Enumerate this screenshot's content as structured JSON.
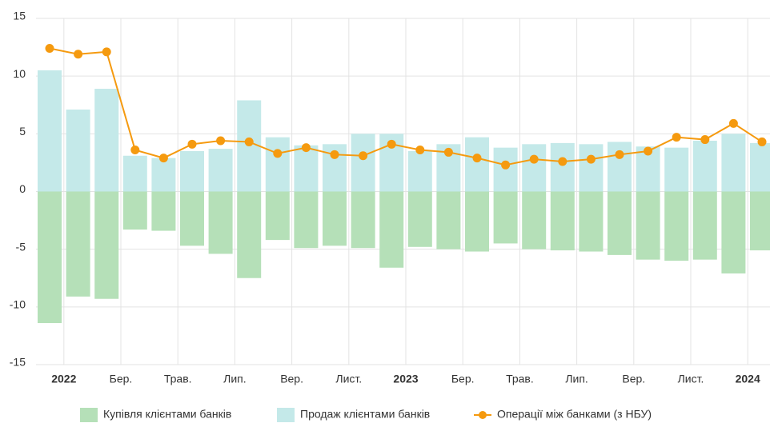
{
  "chart_data": {
    "type": "bar-line",
    "categories": [
      null,
      null,
      null,
      null,
      null,
      null,
      null,
      null,
      null,
      null,
      null,
      null,
      null,
      null,
      null,
      null,
      null,
      null,
      null,
      null,
      null,
      null,
      null,
      null,
      null,
      null
    ],
    "series": [
      {
        "name": "Купівля клієнтами банків",
        "type": "bar",
        "color": "#b5e0b8",
        "values": [
          -11.4,
          -9.1,
          -9.3,
          -3.3,
          -3.4,
          -4.7,
          -5.4,
          -7.5,
          -4.2,
          -4.9,
          -4.7,
          -4.9,
          -6.6,
          -4.8,
          -5.0,
          -5.2,
          -4.5,
          -5.0,
          -5.1,
          -5.2,
          -5.5,
          -5.9,
          -6.0,
          -5.9,
          -7.1,
          -5.1
        ]
      },
      {
        "name": "Продаж клієнтами банків",
        "type": "bar",
        "color": "#c4e9e9",
        "values": [
          10.5,
          7.1,
          8.9,
          3.1,
          2.9,
          3.5,
          3.7,
          7.9,
          4.7,
          4.0,
          4.1,
          5.0,
          5.0,
          3.5,
          4.1,
          4.7,
          3.8,
          4.1,
          4.2,
          4.1,
          4.3,
          3.9,
          3.8,
          4.4,
          5.0,
          4.2
        ]
      },
      {
        "name": "Операції між банками (з НБУ)",
        "type": "line",
        "color": "#f59a0f",
        "values": [
          12.4,
          11.9,
          12.1,
          3.6,
          2.9,
          4.1,
          4.4,
          4.3,
          3.3,
          3.8,
          3.2,
          3.1,
          4.1,
          3.6,
          3.4,
          2.9,
          2.3,
          2.8,
          2.6,
          2.8,
          3.2,
          3.5,
          4.7,
          4.5,
          5.9,
          4.3
        ]
      }
    ],
    "xticks": [
      {
        "value": 0.5,
        "label": "2022"
      },
      {
        "value": 2.5,
        "label": "Бер."
      },
      {
        "value": 4.5,
        "label": "Трав."
      },
      {
        "value": 6.5,
        "label": "Лип."
      },
      {
        "value": 8.5,
        "label": "Вер."
      },
      {
        "value": 10.5,
        "label": "Лист."
      },
      {
        "value": 12.5,
        "label": "2023"
      },
      {
        "value": 14.5,
        "label": "Бер."
      },
      {
        "value": 16.5,
        "label": "Трав."
      },
      {
        "value": 18.5,
        "label": "Лип."
      },
      {
        "value": 20.5,
        "label": "Вер."
      },
      {
        "value": 22.5,
        "label": "Лист."
      },
      {
        "value": 24.5,
        "label": "2024"
      }
    ],
    "ylim": [
      -15,
      15
    ],
    "yticks": [
      -15,
      -10,
      -5,
      0,
      5,
      10,
      15
    ],
    "grid": true
  }
}
